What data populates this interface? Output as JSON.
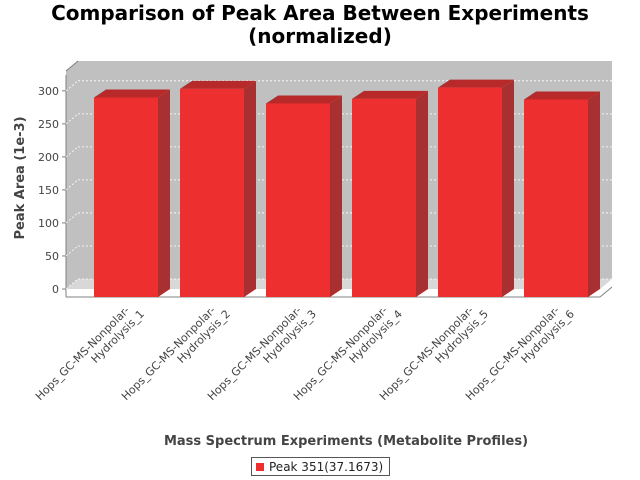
{
  "chart_data": {
    "type": "bar",
    "title_line1": "Comparison of Peak Area Between Experiments",
    "title_line2": "(normalized)",
    "xlabel": "Mass Spectrum Experiments (Metabolite Profiles)",
    "ylabel": "Peak Area (1e-3)",
    "categories": [
      [
        "Hops_GC-MS-Nonpolar-",
        "Hydrolysis_1"
      ],
      [
        "Hops_GC-MS-Nonpolar-",
        "Hydrolysis_2"
      ],
      [
        "Hops_GC-MS-Nonpolar-",
        "Hydrolysis_3"
      ],
      [
        "Hops_GC-MS-Nonpolar-",
        "Hydrolysis_4"
      ],
      [
        "Hops_GC-MS-Nonpolar-",
        "Hydrolysis_5"
      ],
      [
        "Hops_GC-MS-Nonpolar-",
        "Hydrolysis_6"
      ]
    ],
    "series": [
      {
        "name": "Peak 351(37.1673)",
        "color": "#ee2f2f",
        "values": [
          302,
          315,
          293,
          300,
          317,
          299
        ]
      }
    ],
    "yticks": [
      "0",
      "50",
      "100",
      "150",
      "200",
      "250",
      "300"
    ],
    "ylim": [
      0,
      330
    ],
    "grid": true,
    "legend_position": "bottom",
    "plot_background": "#c0c0c0"
  }
}
